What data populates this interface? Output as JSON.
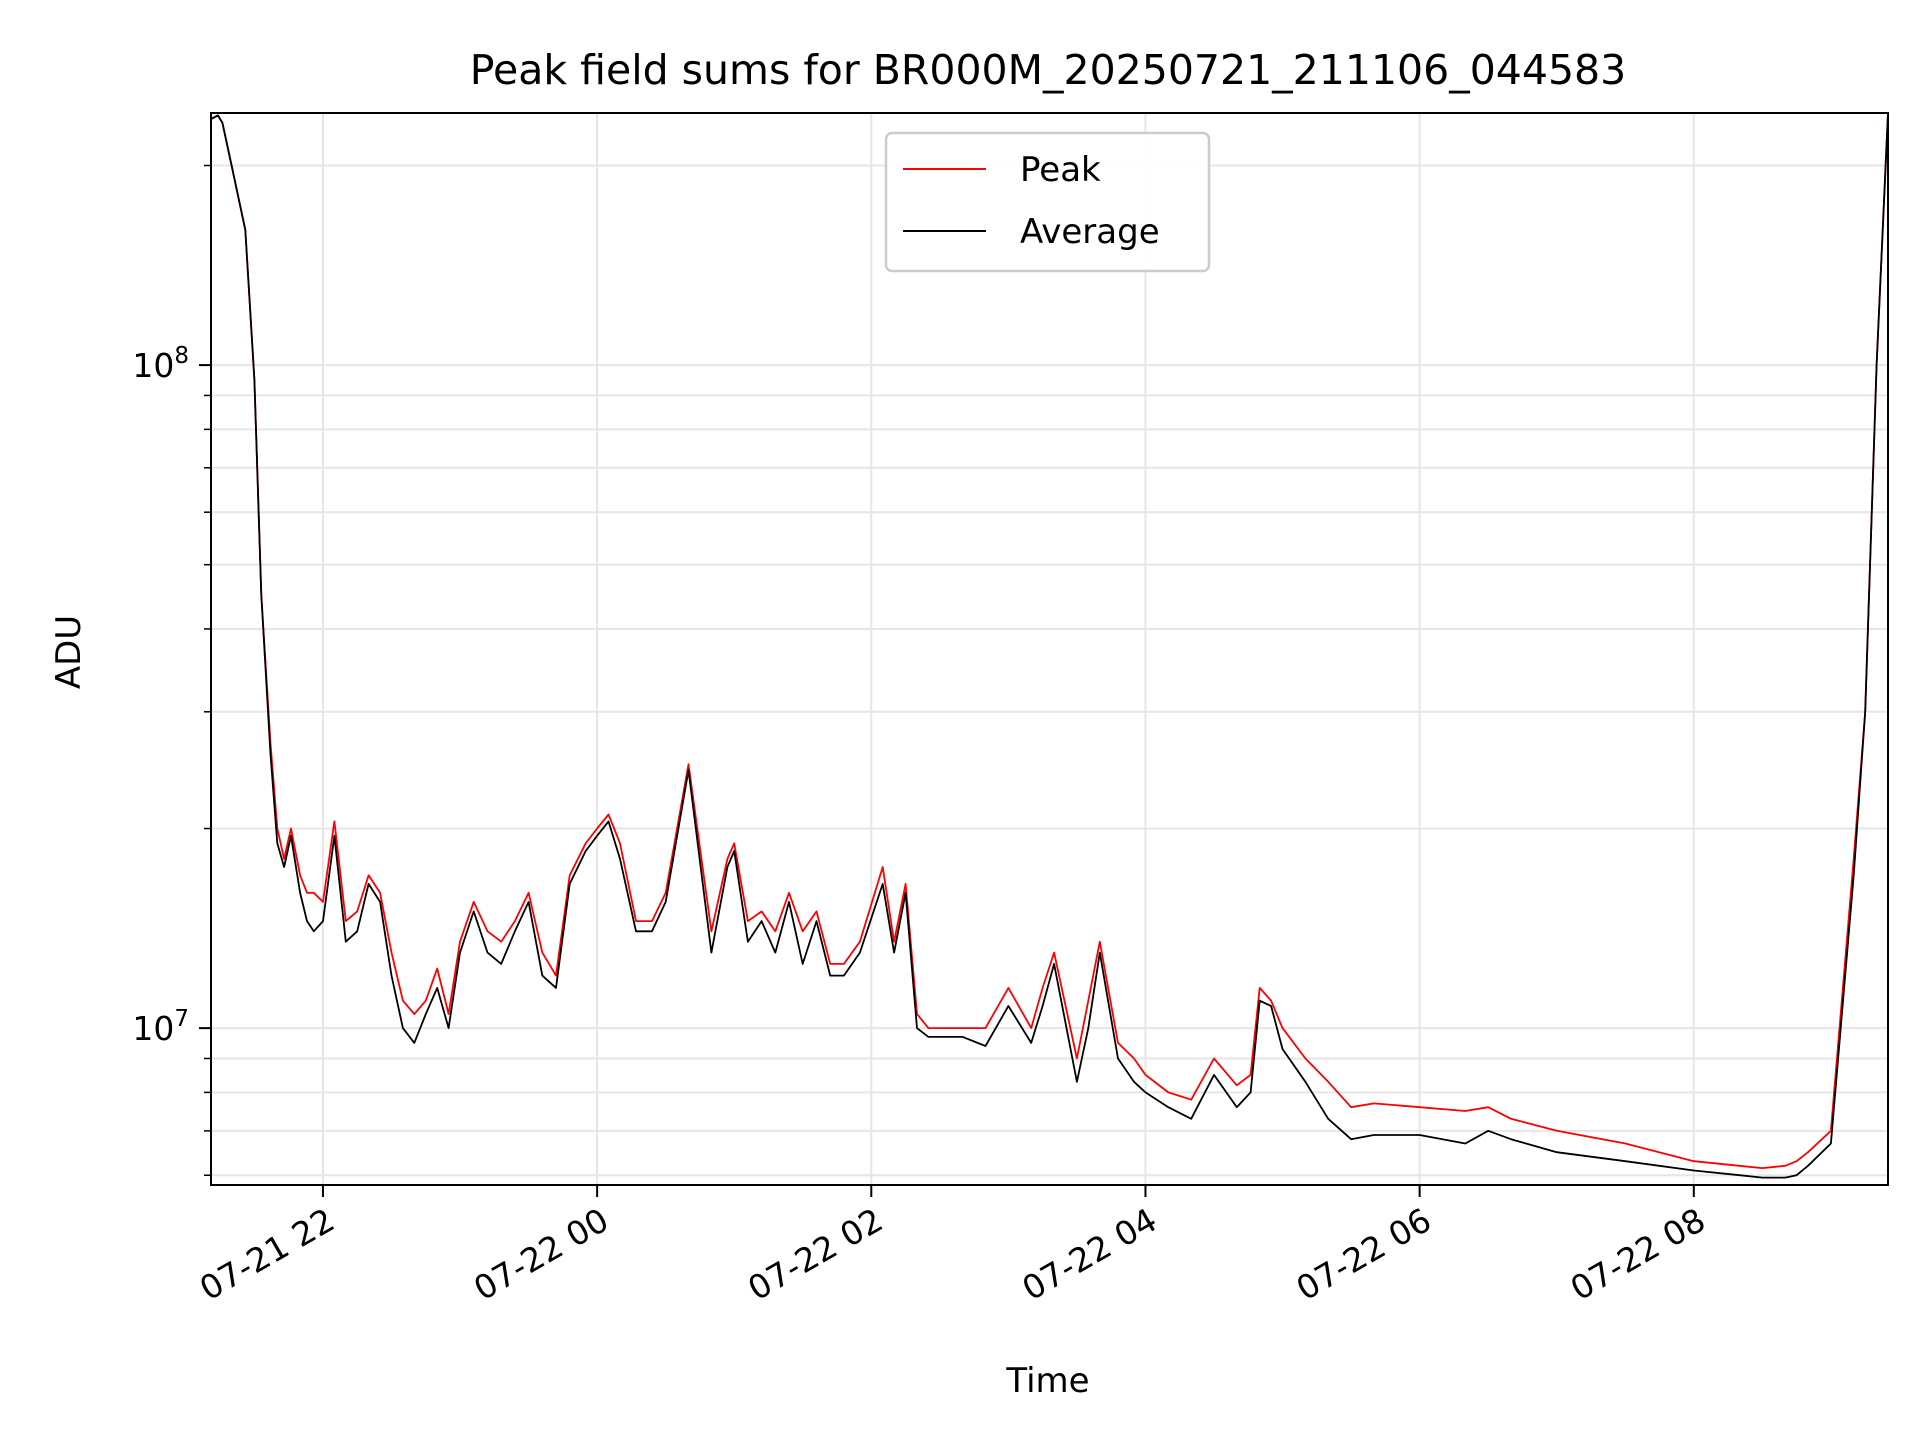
{
  "chart_data": {
    "type": "line",
    "title": "Peak field sums for BR000M_20250721_211106_044583",
    "xlabel": "Time",
    "ylabel": "ADU",
    "yscale": "log",
    "xlim": [
      "2025-07-21 21:11",
      "2025-07-22 09:25"
    ],
    "ylim": [
      5800000,
      240000000
    ],
    "grid": true,
    "legend_position": "top-center",
    "x_tick_labels": [
      "07-21 22",
      "07-22 00",
      "07-22 02",
      "07-22 04",
      "07-22 06",
      "07-22 08"
    ],
    "x_tick_times": [
      "2025-07-21 22:00",
      "2025-07-22 00:00",
      "2025-07-22 02:00",
      "2025-07-22 04:00",
      "2025-07-22 06:00",
      "2025-07-22 08:00"
    ],
    "y_major_ticks": [
      {
        "value": 10000000,
        "label": "10^7"
      },
      {
        "value": 100000000,
        "label": "10^8"
      }
    ],
    "y_minor_ticks": [
      6000000,
      7000000,
      8000000,
      9000000,
      20000000,
      30000000,
      40000000,
      50000000,
      60000000,
      70000000,
      80000000,
      90000000,
      200000000
    ],
    "series": [
      {
        "name": "Peak",
        "color": "#ff0000",
        "x": [
          "2025-07-21 21:11",
          "2025-07-21 21:14",
          "2025-07-21 21:16",
          "2025-07-21 21:20",
          "2025-07-21 21:26",
          "2025-07-21 21:30",
          "2025-07-21 21:33",
          "2025-07-21 21:37",
          "2025-07-21 21:40",
          "2025-07-21 21:43",
          "2025-07-21 21:46",
          "2025-07-21 21:50",
          "2025-07-21 21:53",
          "2025-07-21 21:56",
          "2025-07-21 22:00",
          "2025-07-21 22:05",
          "2025-07-21 22:10",
          "2025-07-21 22:15",
          "2025-07-21 22:20",
          "2025-07-21 22:25",
          "2025-07-21 22:30",
          "2025-07-21 22:35",
          "2025-07-21 22:40",
          "2025-07-21 22:45",
          "2025-07-21 22:50",
          "2025-07-21 22:55",
          "2025-07-21 23:00",
          "2025-07-21 23:06",
          "2025-07-21 23:12",
          "2025-07-21 23:18",
          "2025-07-21 23:24",
          "2025-07-21 23:30",
          "2025-07-21 23:36",
          "2025-07-21 23:42",
          "2025-07-21 23:48",
          "2025-07-21 23:55",
          "2025-07-22 00:00",
          "2025-07-22 00:05",
          "2025-07-22 00:10",
          "2025-07-22 00:17",
          "2025-07-22 00:24",
          "2025-07-22 00:30",
          "2025-07-22 00:40",
          "2025-07-22 00:50",
          "2025-07-22 00:57",
          "2025-07-22 01:00",
          "2025-07-22 01:06",
          "2025-07-22 01:12",
          "2025-07-22 01:18",
          "2025-07-22 01:24",
          "2025-07-22 01:30",
          "2025-07-22 01:36",
          "2025-07-22 01:42",
          "2025-07-22 01:48",
          "2025-07-22 01:55",
          "2025-07-22 02:05",
          "2025-07-22 02:10",
          "2025-07-22 02:15",
          "2025-07-22 02:20",
          "2025-07-22 02:25",
          "2025-07-22 02:30",
          "2025-07-22 02:40",
          "2025-07-22 02:50",
          "2025-07-22 03:00",
          "2025-07-22 03:10",
          "2025-07-22 03:15",
          "2025-07-22 03:20",
          "2025-07-22 03:30",
          "2025-07-22 03:35",
          "2025-07-22 03:40",
          "2025-07-22 03:48",
          "2025-07-22 03:55",
          "2025-07-22 04:00",
          "2025-07-22 04:10",
          "2025-07-22 04:20",
          "2025-07-22 04:30",
          "2025-07-22 04:40",
          "2025-07-22 04:46",
          "2025-07-22 04:50",
          "2025-07-22 04:55",
          "2025-07-22 05:00",
          "2025-07-22 05:10",
          "2025-07-22 05:20",
          "2025-07-22 05:30",
          "2025-07-22 05:40",
          "2025-07-22 06:00",
          "2025-07-22 06:20",
          "2025-07-22 06:30",
          "2025-07-22 06:40",
          "2025-07-22 07:00",
          "2025-07-22 07:30",
          "2025-07-22 08:00",
          "2025-07-22 08:20",
          "2025-07-22 08:30",
          "2025-07-22 08:40",
          "2025-07-22 08:45",
          "2025-07-22 08:50",
          "2025-07-22 09:00",
          "2025-07-22 09:10",
          "2025-07-22 09:15",
          "2025-07-22 09:20",
          "2025-07-22 09:25"
        ],
        "y": [
          235000000,
          238000000,
          232000000,
          200000000,
          160000000,
          95000000,
          45000000,
          27000000,
          20000000,
          18000000,
          20000000,
          17000000,
          16000000,
          16000000,
          15500000,
          20500000,
          14500000,
          15000000,
          17000000,
          16000000,
          13000000,
          11000000,
          10500000,
          11000000,
          12300000,
          10500000,
          13500000,
          15500000,
          14000000,
          13500000,
          14500000,
          16000000,
          13000000,
          12000000,
          17000000,
          19000000,
          20000000,
          21000000,
          19000000,
          14500000,
          14500000,
          16000000,
          25000000,
          14000000,
          18000000,
          19000000,
          14500000,
          15000000,
          14000000,
          16000000,
          14000000,
          15000000,
          12500000,
          12500000,
          13500000,
          17500000,
          13500000,
          16500000,
          10500000,
          10000000,
          10000000,
          10000000,
          10000000,
          11500000,
          10000000,
          11500000,
          13000000,
          9000000,
          11000000,
          13500000,
          9500000,
          9000000,
          8500000,
          8000000,
          7800000,
          9000000,
          8200000,
          8500000,
          11500000,
          11000000,
          10000000,
          9000000,
          8300000,
          7600000,
          7700000,
          7600000,
          7500000,
          7600000,
          7300000,
          7000000,
          6700000,
          6300000,
          6200000,
          6150000,
          6200000,
          6300000,
          6500000,
          7000000,
          18000000,
          30000000,
          100000000,
          240000000
        ]
      },
      {
        "name": "Average",
        "color": "#000000",
        "x": [
          "2025-07-21 21:11",
          "2025-07-21 21:14",
          "2025-07-21 21:16",
          "2025-07-21 21:20",
          "2025-07-21 21:26",
          "2025-07-21 21:30",
          "2025-07-21 21:33",
          "2025-07-21 21:37",
          "2025-07-21 21:40",
          "2025-07-21 21:43",
          "2025-07-21 21:46",
          "2025-07-21 21:50",
          "2025-07-21 21:53",
          "2025-07-21 21:56",
          "2025-07-21 22:00",
          "2025-07-21 22:05",
          "2025-07-21 22:10",
          "2025-07-21 22:15",
          "2025-07-21 22:20",
          "2025-07-21 22:25",
          "2025-07-21 22:30",
          "2025-07-21 22:35",
          "2025-07-21 22:40",
          "2025-07-21 22:45",
          "2025-07-21 22:50",
          "2025-07-21 22:55",
          "2025-07-21 23:00",
          "2025-07-21 23:06",
          "2025-07-21 23:12",
          "2025-07-21 23:18",
          "2025-07-21 23:24",
          "2025-07-21 23:30",
          "2025-07-21 23:36",
          "2025-07-21 23:42",
          "2025-07-21 23:48",
          "2025-07-21 23:55",
          "2025-07-22 00:00",
          "2025-07-22 00:05",
          "2025-07-22 00:10",
          "2025-07-22 00:17",
          "2025-07-22 00:24",
          "2025-07-22 00:30",
          "2025-07-22 00:40",
          "2025-07-22 00:50",
          "2025-07-22 00:57",
          "2025-07-22 01:00",
          "2025-07-22 01:06",
          "2025-07-22 01:12",
          "2025-07-22 01:18",
          "2025-07-22 01:24",
          "2025-07-22 01:30",
          "2025-07-22 01:36",
          "2025-07-22 01:42",
          "2025-07-22 01:48",
          "2025-07-22 01:55",
          "2025-07-22 02:05",
          "2025-07-22 02:10",
          "2025-07-22 02:15",
          "2025-07-22 02:20",
          "2025-07-22 02:25",
          "2025-07-22 02:30",
          "2025-07-22 02:40",
          "2025-07-22 02:50",
          "2025-07-22 03:00",
          "2025-07-22 03:10",
          "2025-07-22 03:15",
          "2025-07-22 03:20",
          "2025-07-22 03:30",
          "2025-07-22 03:35",
          "2025-07-22 03:40",
          "2025-07-22 03:48",
          "2025-07-22 03:55",
          "2025-07-22 04:00",
          "2025-07-22 04:10",
          "2025-07-22 04:20",
          "2025-07-22 04:30",
          "2025-07-22 04:40",
          "2025-07-22 04:46",
          "2025-07-22 04:50",
          "2025-07-22 04:55",
          "2025-07-22 05:00",
          "2025-07-22 05:10",
          "2025-07-22 05:20",
          "2025-07-22 05:30",
          "2025-07-22 05:40",
          "2025-07-22 06:00",
          "2025-07-22 06:20",
          "2025-07-22 06:30",
          "2025-07-22 06:40",
          "2025-07-22 07:00",
          "2025-07-22 07:30",
          "2025-07-22 08:00",
          "2025-07-22 08:20",
          "2025-07-22 08:30",
          "2025-07-22 08:40",
          "2025-07-22 08:45",
          "2025-07-22 08:50",
          "2025-07-22 09:00",
          "2025-07-22 09:10",
          "2025-07-22 09:15",
          "2025-07-22 09:20",
          "2025-07-22 09:25"
        ],
        "y": [
          235000000,
          238000000,
          232000000,
          200000000,
          160000000,
          95000000,
          45000000,
          26000000,
          19000000,
          17500000,
          19500000,
          16000000,
          14500000,
          14000000,
          14500000,
          19500000,
          13500000,
          14000000,
          16500000,
          15500000,
          12000000,
          10000000,
          9500000,
          10500000,
          11500000,
          10000000,
          13000000,
          15000000,
          13000000,
          12500000,
          14000000,
          15500000,
          12000000,
          11500000,
          16500000,
          18500000,
          19500000,
          20500000,
          18000000,
          14000000,
          14000000,
          15500000,
          24500000,
          13000000,
          17500000,
          18500000,
          13500000,
          14500000,
          13000000,
          15500000,
          12500000,
          14500000,
          12000000,
          12000000,
          13000000,
          16500000,
          13000000,
          16000000,
          10000000,
          9700000,
          9700000,
          9700000,
          9400000,
          10800000,
          9500000,
          10800000,
          12500000,
          8300000,
          10000000,
          13000000,
          9000000,
          8300000,
          8000000,
          7600000,
          7300000,
          8500000,
          7600000,
          8000000,
          11000000,
          10800000,
          9300000,
          8300000,
          7300000,
          6800000,
          6900000,
          6900000,
          6700000,
          7000000,
          6800000,
          6500000,
          6300000,
          6100000,
          6000000,
          5950000,
          5950000,
          6000000,
          6200000,
          6700000,
          17000000,
          30000000,
          100000000,
          240000000
        ]
      }
    ]
  }
}
